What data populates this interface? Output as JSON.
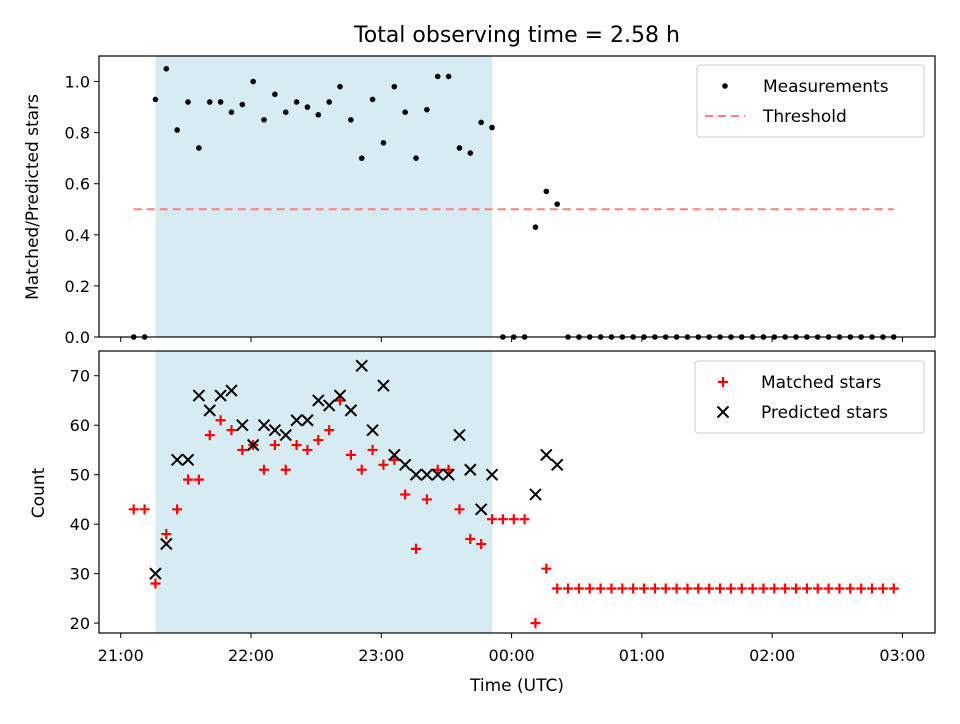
{
  "chart_data": [
    {
      "type": "scatter",
      "title": "Total observing time = 2.58 h",
      "xlabel": "",
      "ylabel": "Matched/Predicted stars",
      "ylim": [
        0,
        1.1
      ],
      "yticks": [
        "0.0",
        "0.2",
        "0.4",
        "0.6",
        "0.8",
        "1.0"
      ],
      "shaded_region": {
        "x_start": "21:16",
        "x_end": "23:51",
        "color": "#add8e6"
      },
      "legend_position": "top-right",
      "grid": false,
      "series": [
        {
          "name": "Measurements",
          "marker": "dot",
          "color": "#000000",
          "points": [
            [
              "21:06",
              0.0
            ],
            [
              "21:11",
              0.0
            ],
            [
              "21:16",
              0.93
            ],
            [
              "21:21",
              1.05
            ],
            [
              "21:26",
              0.81
            ],
            [
              "21:31",
              0.92
            ],
            [
              "21:36",
              0.74
            ],
            [
              "21:41",
              0.92
            ],
            [
              "21:46",
              0.92
            ],
            [
              "21:51",
              0.88
            ],
            [
              "21:56",
              0.91
            ],
            [
              "22:01",
              1.0
            ],
            [
              "22:06",
              0.85
            ],
            [
              "22:11",
              0.95
            ],
            [
              "22:16",
              0.88
            ],
            [
              "22:21",
              0.92
            ],
            [
              "22:26",
              0.9
            ],
            [
              "22:31",
              0.87
            ],
            [
              "22:36",
              0.92
            ],
            [
              "22:41",
              0.98
            ],
            [
              "22:46",
              0.85
            ],
            [
              "22:51",
              0.7
            ],
            [
              "22:56",
              0.93
            ],
            [
              "23:01",
              0.76
            ],
            [
              "23:06",
              0.98
            ],
            [
              "23:11",
              0.88
            ],
            [
              "23:16",
              0.7
            ],
            [
              "23:21",
              0.89
            ],
            [
              "23:26",
              1.02
            ],
            [
              "23:31",
              1.02
            ],
            [
              "23:36",
              0.74
            ],
            [
              "23:41",
              0.72
            ],
            [
              "23:46",
              0.84
            ],
            [
              "23:51",
              0.82
            ],
            [
              "23:56",
              0.0
            ],
            [
              "00:01",
              0.0
            ],
            [
              "00:06",
              0.0
            ],
            [
              "00:11",
              0.43
            ],
            [
              "00:16",
              0.57
            ],
            [
              "00:21",
              0.52
            ],
            [
              "00:26",
              0.0
            ],
            [
              "00:31",
              0.0
            ],
            [
              "00:36",
              0.0
            ],
            [
              "00:41",
              0.0
            ],
            [
              "00:46",
              0.0
            ],
            [
              "00:51",
              0.0
            ],
            [
              "00:56",
              0.0
            ],
            [
              "01:01",
              0.0
            ],
            [
              "01:06",
              0.0
            ],
            [
              "01:11",
              0.0
            ],
            [
              "01:16",
              0.0
            ],
            [
              "01:21",
              0.0
            ],
            [
              "01:26",
              0.0
            ],
            [
              "01:31",
              0.0
            ],
            [
              "01:36",
              0.0
            ],
            [
              "01:41",
              0.0
            ],
            [
              "01:46",
              0.0
            ],
            [
              "01:51",
              0.0
            ],
            [
              "01:56",
              0.0
            ],
            [
              "02:01",
              0.0
            ],
            [
              "02:06",
              0.0
            ],
            [
              "02:11",
              0.0
            ],
            [
              "02:16",
              0.0
            ],
            [
              "02:21",
              0.0
            ],
            [
              "02:26",
              0.0
            ],
            [
              "02:31",
              0.0
            ],
            [
              "02:36",
              0.0
            ],
            [
              "02:41",
              0.0
            ],
            [
              "02:46",
              0.0
            ],
            [
              "02:51",
              0.0
            ],
            [
              "02:56",
              0.0
            ]
          ]
        },
        {
          "name": "Threshold",
          "style": "dashed-line",
          "color": "#ff7f7f",
          "points": [
            [
              "21:06",
              0.5
            ],
            [
              "02:56",
              0.5
            ]
          ]
        }
      ]
    },
    {
      "type": "scatter",
      "title": "",
      "xlabel": "Time (UTC)",
      "ylabel": "Count",
      "ylim": [
        18,
        75
      ],
      "yticks": [
        "20",
        "30",
        "40",
        "50",
        "60",
        "70"
      ],
      "xlim_minutes_note": "shared time axis",
      "xticks": [
        "21:00",
        "22:00",
        "23:00",
        "00:00",
        "01:00",
        "02:00",
        "03:00"
      ],
      "shaded_region": {
        "x_start": "21:16",
        "x_end": "23:51",
        "color": "#add8e6"
      },
      "legend_position": "top-right",
      "grid": false,
      "series": [
        {
          "name": "Matched stars",
          "marker": "plus",
          "color": "#ff0000",
          "points": [
            [
              "21:06",
              43
            ],
            [
              "21:11",
              43
            ],
            [
              "21:16",
              28
            ],
            [
              "21:21",
              38
            ],
            [
              "21:26",
              43
            ],
            [
              "21:31",
              49
            ],
            [
              "21:36",
              49
            ],
            [
              "21:41",
              58
            ],
            [
              "21:46",
              61
            ],
            [
              "21:51",
              59
            ],
            [
              "21:56",
              55
            ],
            [
              "22:01",
              56
            ],
            [
              "22:06",
              51
            ],
            [
              "22:11",
              56
            ],
            [
              "22:16",
              51
            ],
            [
              "22:21",
              56
            ],
            [
              "22:26",
              55
            ],
            [
              "22:31",
              57
            ],
            [
              "22:36",
              59
            ],
            [
              "22:41",
              65
            ],
            [
              "22:46",
              54
            ],
            [
              "22:51",
              51
            ],
            [
              "22:56",
              55
            ],
            [
              "23:01",
              52
            ],
            [
              "23:06",
              53
            ],
            [
              "23:11",
              46
            ],
            [
              "23:16",
              35
            ],
            [
              "23:21",
              45
            ],
            [
              "23:26",
              51
            ],
            [
              "23:31",
              51
            ],
            [
              "23:36",
              43
            ],
            [
              "23:41",
              37
            ],
            [
              "23:46",
              36
            ],
            [
              "23:51",
              41
            ],
            [
              "23:56",
              41
            ],
            [
              "00:01",
              41
            ],
            [
              "00:06",
              41
            ],
            [
              "00:11",
              20
            ],
            [
              "00:16",
              31
            ],
            [
              "00:21",
              27
            ],
            [
              "00:26",
              27
            ],
            [
              "00:31",
              27
            ],
            [
              "00:36",
              27
            ],
            [
              "00:41",
              27
            ],
            [
              "00:46",
              27
            ],
            [
              "00:51",
              27
            ],
            [
              "00:56",
              27
            ],
            [
              "01:01",
              27
            ],
            [
              "01:06",
              27
            ],
            [
              "01:11",
              27
            ],
            [
              "01:16",
              27
            ],
            [
              "01:21",
              27
            ],
            [
              "01:26",
              27
            ],
            [
              "01:31",
              27
            ],
            [
              "01:36",
              27
            ],
            [
              "01:41",
              27
            ],
            [
              "01:46",
              27
            ],
            [
              "01:51",
              27
            ],
            [
              "01:56",
              27
            ],
            [
              "02:01",
              27
            ],
            [
              "02:06",
              27
            ],
            [
              "02:11",
              27
            ],
            [
              "02:16",
              27
            ],
            [
              "02:21",
              27
            ],
            [
              "02:26",
              27
            ],
            [
              "02:31",
              27
            ],
            [
              "02:36",
              27
            ],
            [
              "02:41",
              27
            ],
            [
              "02:46",
              27
            ],
            [
              "02:51",
              27
            ],
            [
              "02:56",
              27
            ]
          ]
        },
        {
          "name": "Predicted stars",
          "marker": "x",
          "color": "#000000",
          "points": [
            [
              "21:16",
              30
            ],
            [
              "21:21",
              36
            ],
            [
              "21:26",
              53
            ],
            [
              "21:31",
              53
            ],
            [
              "21:36",
              66
            ],
            [
              "21:41",
              63
            ],
            [
              "21:46",
              66
            ],
            [
              "21:51",
              67
            ],
            [
              "21:56",
              60
            ],
            [
              "22:01",
              56
            ],
            [
              "22:06",
              60
            ],
            [
              "22:11",
              59
            ],
            [
              "22:16",
              58
            ],
            [
              "22:21",
              61
            ],
            [
              "22:26",
              61
            ],
            [
              "22:31",
              65
            ],
            [
              "22:36",
              64
            ],
            [
              "22:41",
              66
            ],
            [
              "22:46",
              63
            ],
            [
              "22:51",
              72
            ],
            [
              "22:56",
              59
            ],
            [
              "23:01",
              68
            ],
            [
              "23:06",
              54
            ],
            [
              "23:11",
              52
            ],
            [
              "23:16",
              50
            ],
            [
              "23:21",
              50
            ],
            [
              "23:26",
              50
            ],
            [
              "23:31",
              50
            ],
            [
              "23:36",
              58
            ],
            [
              "23:41",
              51
            ],
            [
              "23:46",
              43
            ],
            [
              "23:51",
              50
            ],
            [
              "00:11",
              46
            ],
            [
              "00:16",
              54
            ],
            [
              "00:21",
              52
            ]
          ]
        }
      ]
    }
  ]
}
